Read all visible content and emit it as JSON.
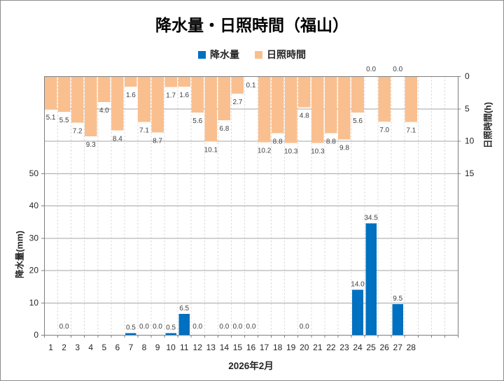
{
  "title": "降水量・日照時間（福山）",
  "legend": {
    "items": [
      {
        "label": "降水量",
        "color": "#0070C0"
      },
      {
        "label": "日照時間",
        "color": "#FABF8F"
      }
    ]
  },
  "chart_data": {
    "type": "bar",
    "title": "降水量・日照時間（福山）",
    "xlabel": "2026年2月",
    "categories": [
      1,
      2,
      3,
      4,
      5,
      6,
      7,
      8,
      9,
      10,
      11,
      12,
      13,
      14,
      15,
      16,
      17,
      18,
      19,
      20,
      21,
      22,
      23,
      24,
      25,
      26,
      27,
      28
    ],
    "x_slots": 31,
    "series": [
      {
        "name": "降水量",
        "unit": "mm",
        "axis": "left",
        "color": "#0070C0",
        "values": [
          null,
          0,
          null,
          null,
          null,
          null,
          0.5,
          0,
          0,
          0.5,
          6.5,
          0,
          null,
          0,
          0,
          0,
          null,
          null,
          null,
          0,
          null,
          null,
          null,
          14,
          34.5,
          null,
          9.5,
          null
        ]
      },
      {
        "name": "日照時間",
        "unit": "h",
        "axis": "right",
        "inverted": true,
        "color": "#FABF8F",
        "values": [
          5.1,
          5.5,
          7.2,
          9.3,
          4,
          8.4,
          1.6,
          7.1,
          8.7,
          1.7,
          1.6,
          5.6,
          10.1,
          6.8,
          2.7,
          0.1,
          10.2,
          8.8,
          10.3,
          4.8,
          10.3,
          8.8,
          9.8,
          5.6,
          0,
          7,
          0,
          7.1
        ]
      }
    ],
    "left_axis": {
      "title": "降水量(mm)",
      "ticks": [
        0,
        10,
        20,
        30,
        40,
        50
      ],
      "range": [
        0,
        80
      ]
    },
    "right_axis": {
      "title": "日照時間(h)",
      "ticks": [
        0,
        5,
        10,
        15
      ],
      "range": [
        0,
        15
      ],
      "inverted": true
    },
    "grid": true,
    "legend_position": "top",
    "data_labels": "outside-end, one decimal"
  },
  "colors": {
    "precipitation": "#0070C0",
    "sunshine": "#FABF8F",
    "axis_line": "#7F7F7F",
    "gridline": "#A6A6A6",
    "vertical_gridline": "#D9D9D9",
    "label_text": "#404040",
    "tick_text": "#262626"
  }
}
